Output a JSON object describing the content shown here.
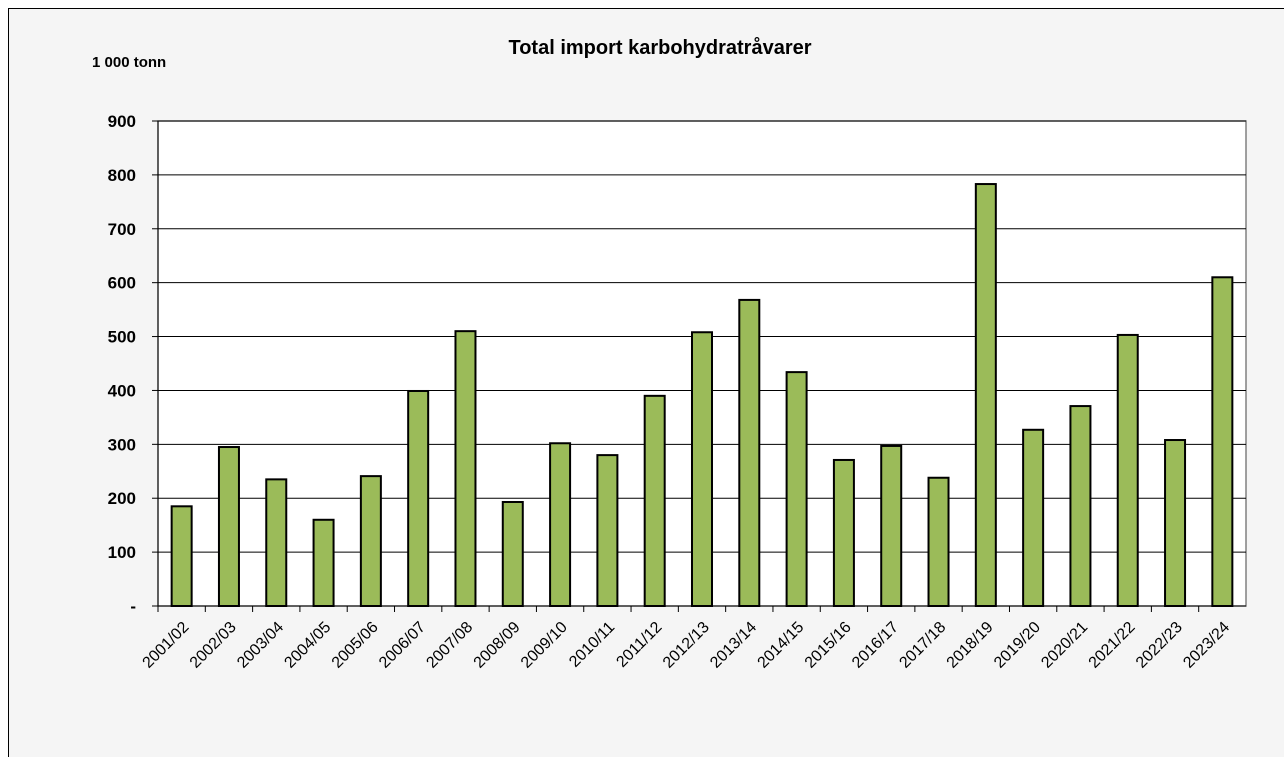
{
  "chart_data": {
    "type": "bar",
    "title": "Total import karbohydratråvarer",
    "y_unit_label": "1 000 tonn",
    "categories": [
      "2001/02",
      "2002/03",
      "2003/04",
      "2004/05",
      "2005/06",
      "2006/07",
      "2007/08",
      "2008/09",
      "2009/10",
      "2010/11",
      "2011/12",
      "2012/13",
      "2013/14",
      "2014/15",
      "2015/16",
      "2016/17",
      "2017/18",
      "2018/19",
      "2019/20",
      "2020/21",
      "2021/22",
      "2022/23",
      "2023/24"
    ],
    "values": [
      185,
      295,
      235,
      160,
      241,
      399,
      510,
      193,
      302,
      280,
      390,
      508,
      568,
      434,
      271,
      297,
      238,
      783,
      327,
      371,
      503,
      308,
      610
    ],
    "color": "#9bbb59",
    "ylim": [
      0,
      900
    ],
    "yticks": [
      {
        "value": 0,
        "label": "-"
      },
      100,
      200,
      300,
      400,
      500,
      600,
      700,
      800,
      900
    ],
    "grid": true
  }
}
